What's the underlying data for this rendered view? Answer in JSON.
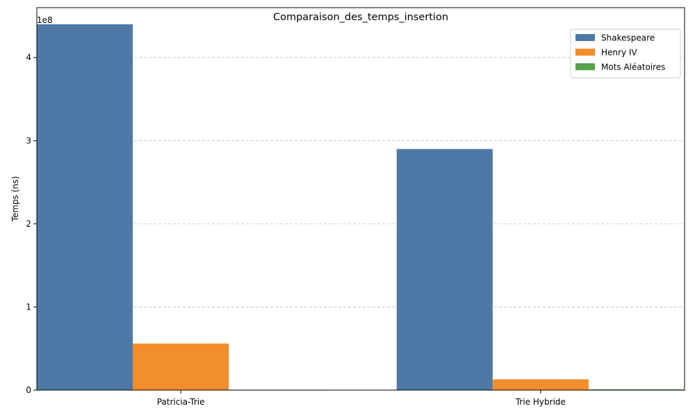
{
  "chart_data": {
    "type": "bar",
    "title": "Comparaison_des_temps_insertion",
    "xlabel": "",
    "ylabel": "Temps (ns)",
    "y_offset_label": "1e8",
    "y_scale_factor": 100000000,
    "categories": [
      "Patricia-Trie",
      "Trie Hybride"
    ],
    "series": [
      {
        "name": "Shakespeare",
        "color": "#4e79a7",
        "values": [
          440000000,
          290000000
        ]
      },
      {
        "name": "Henry IV",
        "color": "#f28e2b",
        "values": [
          56000000,
          13000000
        ]
      },
      {
        "name": "Mots Aléatoires",
        "color": "#59a14f",
        "values": [
          150000,
          900000
        ]
      }
    ],
    "ylim": [
      0,
      460000000
    ],
    "y_ticks": [
      0,
      1,
      2,
      3,
      4
    ],
    "grid": "y, dashed",
    "legend_position": "top-right"
  }
}
